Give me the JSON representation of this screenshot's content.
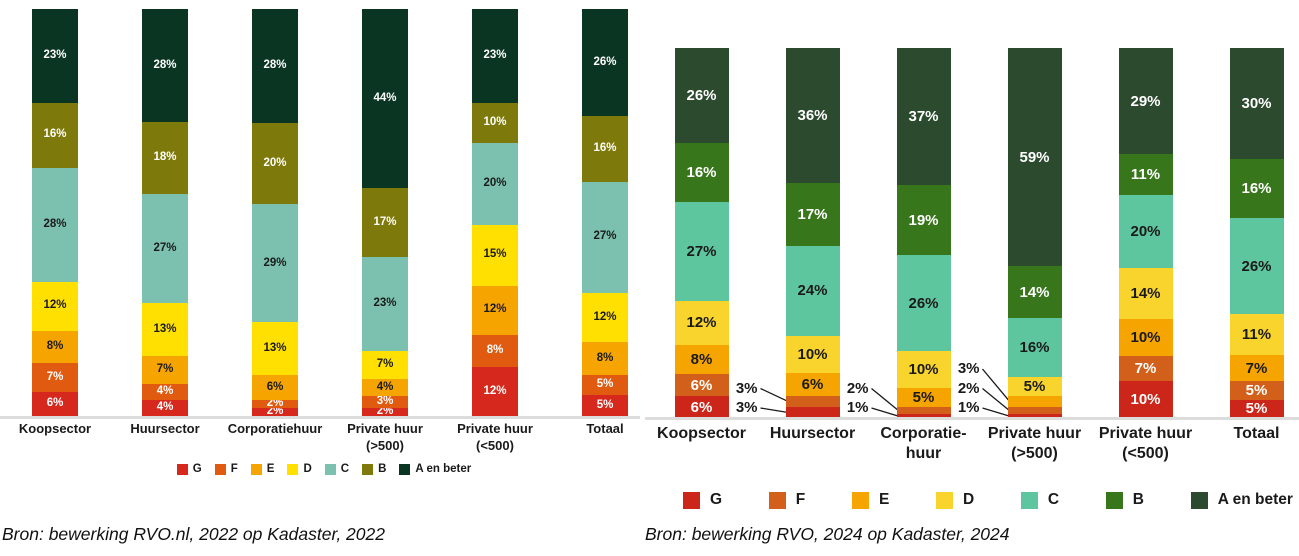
{
  "colors": {
    "axis_line": "#dcdcdc",
    "label_dark": "#1a1a1a",
    "label_light": "#ffffff"
  },
  "chart_data": [
    {
      "type": "bar",
      "stacked": true,
      "unit": "%",
      "ylim": [
        0,
        100
      ],
      "grid": false,
      "legend_position": "bottom",
      "categories": [
        "Koopsector",
        "Huursector",
        "Corporatiehuur",
        "Private huur (>500)",
        "Private huur (<500)",
        "Totaal"
      ],
      "category_lines": [
        [
          "Koopsector"
        ],
        [
          "Huursector"
        ],
        [
          "Corporatiehuur"
        ],
        [
          "Private huur",
          "(>500)"
        ],
        [
          "Private huur",
          "(<500)"
        ],
        [
          "Totaal"
        ]
      ],
      "series": [
        {
          "name": "G",
          "color": "#d6281c",
          "label_color": "#ffffff",
          "values": [
            6,
            4,
            2,
            2,
            12,
            5
          ]
        },
        {
          "name": "F",
          "color": "#e05a10",
          "label_color": "#ffffff",
          "values": [
            7,
            4,
            2,
            3,
            8,
            5
          ]
        },
        {
          "name": "E",
          "color": "#f6a400",
          "label_color": "#1a1a1a",
          "values": [
            8,
            7,
            6,
            4,
            12,
            8
          ]
        },
        {
          "name": "D",
          "color": "#ffe000",
          "label_color": "#1a1a1a",
          "values": [
            12,
            13,
            13,
            7,
            15,
            12
          ]
        },
        {
          "name": "C",
          "color": "#7cc1b0",
          "label_color": "#1a1a1a",
          "values": [
            28,
            27,
            29,
            23,
            20,
            27
          ]
        },
        {
          "name": "B",
          "color": "#7d790b",
          "label_color": "#ffffff",
          "values": [
            16,
            18,
            20,
            17,
            10,
            16
          ]
        },
        {
          "name": "A en beter",
          "color": "#0a3522",
          "label_color": "#ffffff",
          "values": [
            23,
            28,
            28,
            44,
            23,
            26
          ]
        }
      ],
      "legend": [
        "G",
        "F",
        "E",
        "D",
        "C",
        "B",
        "A en beter"
      ],
      "source": "Bron: bewerking RVO.nl, 2022 op Kadaster, 2022"
    },
    {
      "type": "bar",
      "stacked": true,
      "unit": "%",
      "ylim": [
        0,
        100
      ],
      "grid": false,
      "legend_position": "bottom",
      "categories": [
        "Koopsector",
        "Huursector",
        "Corporatie-huur",
        "Private huur (>500)",
        "Private huur (<500)",
        "Totaal"
      ],
      "category_lines": [
        [
          "Koopsector"
        ],
        [
          "Huursector"
        ],
        [
          "Corporatie-",
          "huur"
        ],
        [
          "Private huur",
          "(>500)"
        ],
        [
          "Private huur",
          "(<500)"
        ],
        [
          "Totaal"
        ]
      ],
      "series": [
        {
          "name": "G",
          "color": "#cc2519",
          "label_color": "#ffffff",
          "values": [
            6,
            3,
            1,
            1,
            10,
            5
          ]
        },
        {
          "name": "F",
          "color": "#d2601a",
          "label_color": "#ffffff",
          "values": [
            6,
            3,
            2,
            2,
            7,
            5
          ]
        },
        {
          "name": "E",
          "color": "#f6a400",
          "label_color": "#1a1a1a",
          "values": [
            8,
            6,
            5,
            3,
            10,
            7
          ]
        },
        {
          "name": "D",
          "color": "#f8d42c",
          "label_color": "#1a1a1a",
          "values": [
            12,
            10,
            10,
            5,
            14,
            11
          ]
        },
        {
          "name": "C",
          "color": "#5ec69e",
          "label_color": "#1a1a1a",
          "values": [
            27,
            24,
            26,
            16,
            20,
            26
          ]
        },
        {
          "name": "B",
          "color": "#37761a",
          "label_color": "#ffffff",
          "values": [
            16,
            17,
            19,
            14,
            11,
            16
          ]
        },
        {
          "name": "A en beter",
          "color": "#2b4a2e",
          "label_color": "#ffffff",
          "values": [
            26,
            36,
            37,
            59,
            29,
            30
          ]
        }
      ],
      "legend": [
        "G",
        "F",
        "E",
        "D",
        "C",
        "B",
        "A en beter"
      ],
      "source": "Bron: bewerking RVO, 2024 op Kadaster, 2024"
    }
  ]
}
